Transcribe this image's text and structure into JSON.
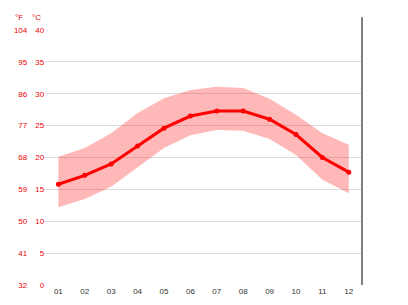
{
  "chart_data": {
    "type": "line",
    "categories": [
      "01",
      "02",
      "03",
      "04",
      "05",
      "06",
      "07",
      "08",
      "09",
      "10",
      "11",
      "12"
    ],
    "values": [
      15.8,
      17.2,
      19.0,
      21.8,
      24.6,
      26.5,
      27.3,
      27.3,
      26.0,
      23.6,
      20.0,
      17.7
    ],
    "low": [
      12.2,
      13.5,
      15.4,
      18.4,
      21.5,
      23.5,
      24.3,
      24.2,
      22.9,
      20.4,
      16.5,
      14.4
    ],
    "high": [
      20.1,
      21.5,
      23.8,
      27.0,
      29.3,
      30.6,
      31.1,
      30.9,
      29.2,
      26.7,
      23.8,
      22.0
    ],
    "color": "#ff0000",
    "marker": "circle",
    "ylabel": "°C",
    "ylim": [
      0,
      40
    ],
    "yticks": [
      0,
      5,
      10,
      15,
      20,
      25,
      30,
      35,
      40
    ],
    "y2label": "°F",
    "y2lim": [
      32,
      104
    ],
    "y2ticks": [
      32,
      41,
      50,
      59,
      68,
      77,
      86,
      95,
      104
    ],
    "grid": true
  }
}
